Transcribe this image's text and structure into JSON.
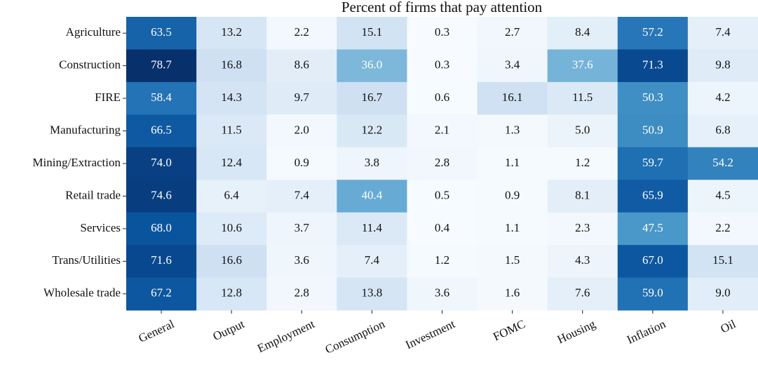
{
  "chart_data": {
    "type": "heatmap",
    "title": "Percent of firms that pay attention",
    "rows": [
      "Agriculture",
      "Construction",
      "FIRE",
      "Manufacturing",
      "Mining/Extraction",
      "Retail trade",
      "Services",
      "Trans/Utilities",
      "Wholesale trade"
    ],
    "columns": [
      "General",
      "Output",
      "Employment",
      "Consumption",
      "Investment",
      "FOMC",
      "Housing",
      "Inflation",
      "Oil"
    ],
    "colormap": "Blues",
    "values": [
      [
        63.5,
        13.2,
        2.2,
        15.1,
        0.3,
        2.7,
        8.4,
        57.2,
        7.4
      ],
      [
        78.7,
        16.8,
        8.6,
        36.0,
        0.3,
        3.4,
        37.6,
        71.3,
        9.8
      ],
      [
        58.4,
        14.3,
        9.7,
        16.7,
        0.6,
        16.1,
        11.5,
        50.3,
        4.2
      ],
      [
        66.5,
        11.5,
        2.0,
        12.2,
        2.1,
        1.3,
        5.0,
        50.9,
        6.8
      ],
      [
        74.0,
        12.4,
        0.9,
        3.8,
        2.8,
        1.1,
        1.2,
        59.7,
        54.2
      ],
      [
        74.6,
        6.4,
        7.4,
        40.4,
        0.5,
        0.9,
        8.1,
        65.9,
        4.5
      ],
      [
        68.0,
        10.6,
        3.7,
        11.4,
        0.4,
        1.1,
        2.3,
        47.5,
        2.2
      ],
      [
        71.6,
        16.6,
        3.6,
        7.4,
        1.2,
        1.5,
        4.3,
        67.0,
        15.1
      ],
      [
        67.2,
        12.8,
        2.8,
        13.8,
        3.6,
        1.6,
        7.6,
        59.0,
        9.0
      ]
    ],
    "value_labels": [
      [
        "63.5",
        "13.2",
        "2.2",
        "15.1",
        "0.3",
        "2.7",
        "8.4",
        "57.2",
        "7.4"
      ],
      [
        "78.7",
        "16.8",
        "8.6",
        "36.0",
        "0.3",
        "3.4",
        "37.6",
        "71.3",
        "9.8"
      ],
      [
        "58.4",
        "14.3",
        "9.7",
        "16.7",
        "0.6",
        "16.1",
        "11.5",
        "50.3",
        "4.2"
      ],
      [
        "66.5",
        "11.5",
        "2.0",
        "12.2",
        "2.1",
        "1.3",
        "5.0",
        "50.9",
        "6.8"
      ],
      [
        "74.0",
        "12.4",
        "0.9",
        "3.8",
        "2.8",
        "1.1",
        "1.2",
        "59.7",
        "54.2"
      ],
      [
        "74.6",
        "6.4",
        "7.4",
        "40.4",
        "0.5",
        "0.9",
        "8.1",
        "65.9",
        "4.5"
      ],
      [
        "68.0",
        "10.6",
        "3.7",
        "11.4",
        "0.4",
        "1.1",
        "2.3",
        "47.5",
        "2.2"
      ],
      [
        "71.6",
        "16.6",
        "3.6",
        "7.4",
        "1.2",
        "1.5",
        "4.3",
        "67.0",
        "15.1"
      ],
      [
        "67.2",
        "12.8",
        "2.8",
        "13.8",
        "3.6",
        "1.6",
        "7.6",
        "59.0",
        "9.0"
      ]
    ]
  }
}
